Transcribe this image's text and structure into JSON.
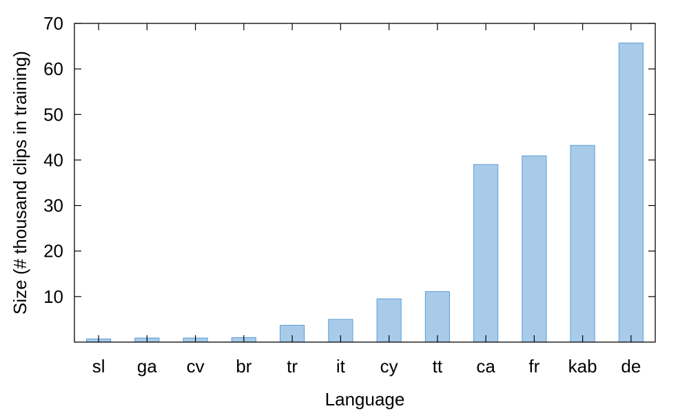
{
  "chart_data": {
    "type": "bar",
    "title": "",
    "xlabel": "Language",
    "ylabel": "Size (# thousand clips in training)",
    "categories": [
      "sl",
      "ga",
      "cv",
      "br",
      "tr",
      "it",
      "cy",
      "tt",
      "ca",
      "fr",
      "kab",
      "de"
    ],
    "values": [
      0.7,
      0.9,
      0.9,
      1.0,
      3.7,
      5.0,
      9.5,
      11.1,
      39.0,
      40.9,
      43.2,
      65.7
    ],
    "ylim": [
      0,
      70
    ],
    "yticks": [
      10,
      20,
      30,
      40,
      50,
      60,
      70
    ],
    "grid": false,
    "legend": "none",
    "bar_fill": "#a8cbe9",
    "bar_stroke": "#5b9bd5"
  }
}
